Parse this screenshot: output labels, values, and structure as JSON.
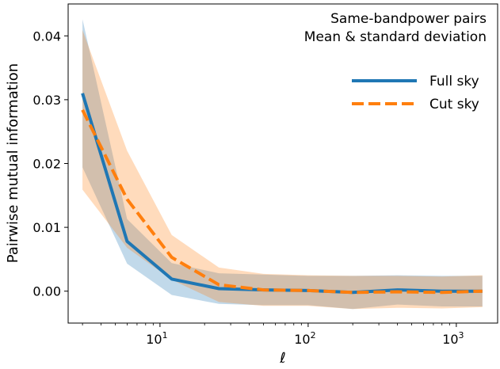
{
  "chart_data": {
    "type": "line",
    "xscale": "log",
    "xlim": [
      2.4,
      1900
    ],
    "ylim": [
      -0.005,
      0.045
    ],
    "xlabel": "ℓ",
    "ylabel": "Pairwise mutual information",
    "annotation": [
      "Same-bandpower pairs",
      "Mean & standard deviation"
    ],
    "legend_position": "upper right",
    "grid": false,
    "yticks": [
      {
        "value": 0.0,
        "label": "0.00"
      },
      {
        "value": 0.01,
        "label": "0.01"
      },
      {
        "value": 0.02,
        "label": "0.02"
      },
      {
        "value": 0.03,
        "label": "0.03"
      },
      {
        "value": 0.04,
        "label": "0.04"
      }
    ],
    "xticks": [
      {
        "value": 10,
        "base": "10",
        "exp": "1"
      },
      {
        "value": 100,
        "base": "10",
        "exp": "2"
      },
      {
        "value": 1000,
        "base": "10",
        "exp": "3"
      }
    ],
    "x": [
      3,
      6,
      12,
      25,
      50,
      100,
      200,
      400,
      800,
      1500
    ],
    "series": [
      {
        "name": "Full sky",
        "color": "#1f77b4",
        "style": "solid",
        "mean": [
          0.031,
          0.0078,
          0.0019,
          0.0004,
          0.0002,
          0.0001,
          -0.0002,
          0.0002,
          0.0,
          0.0
        ],
        "std": [
          0.0116,
          0.0035,
          0.0025,
          0.0024,
          0.0024,
          0.0023,
          0.0026,
          0.0023,
          0.0024,
          0.0024
        ]
      },
      {
        "name": "Cut sky",
        "color": "#ff7f0e",
        "style": "dashed",
        "mean": [
          0.0284,
          0.0144,
          0.0053,
          0.001,
          0.0002,
          0.0001,
          -0.0002,
          -0.0001,
          -0.0002,
          0.0
        ],
        "std": [
          0.0125,
          0.0076,
          0.0035,
          0.0027,
          0.0025,
          0.0024,
          0.0026,
          0.0025,
          0.0025,
          0.0025
        ]
      }
    ]
  }
}
